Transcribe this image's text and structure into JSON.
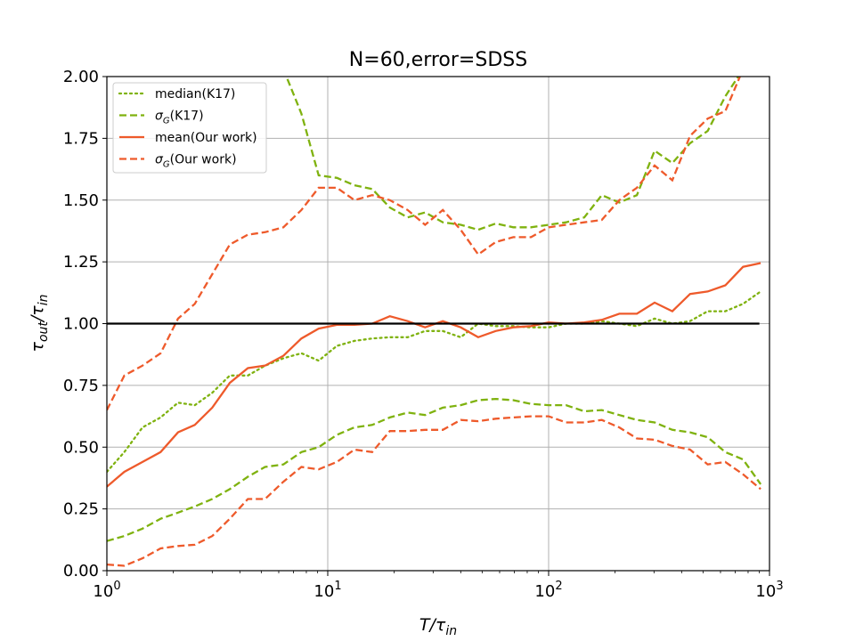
{
  "chart_data": {
    "type": "line",
    "title": "N=60,error=SDSS",
    "xlabel": "T/τin",
    "ylabel": "τout/τin",
    "xscale": "log",
    "xlim": [
      1,
      1000
    ],
    "ylim": [
      0,
      2
    ],
    "grid": true,
    "legend_position": "top-left",
    "x_ticks": [
      {
        "value": 1,
        "base": "10",
        "exp": "0"
      },
      {
        "value": 10,
        "base": "10",
        "exp": "1"
      },
      {
        "value": 100,
        "base": "10",
        "exp": "2"
      },
      {
        "value": 1000,
        "base": "10",
        "exp": "3"
      }
    ],
    "y_ticks": [
      "0.00",
      "0.25",
      "0.50",
      "0.75",
      "1.00",
      "1.25",
      "1.50",
      "1.75",
      "2.00"
    ],
    "reference_line": {
      "y": 1.0,
      "color": "#000000"
    },
    "x": [
      1.0,
      1.2,
      1.45,
      1.75,
      2.1,
      2.5,
      3.0,
      3.6,
      4.35,
      5.2,
      6.3,
      7.6,
      9.1,
      11.0,
      13.2,
      15.9,
      19.1,
      23.0,
      27.6,
      33.2,
      40.0,
      48.0,
      57.6,
      69.2,
      83.2,
      100,
      120,
      145,
      174,
      209,
      251,
      302,
      363,
      437,
      525,
      631,
      759,
      912
    ],
    "series": [
      {
        "label": "median(K17)",
        "color": "#7fb20f",
        "style": "dotted",
        "values": [
          0.4,
          0.48,
          0.58,
          0.62,
          0.68,
          0.67,
          0.72,
          0.79,
          0.79,
          0.83,
          0.86,
          0.88,
          0.85,
          0.91,
          0.93,
          0.94,
          0.945,
          0.945,
          0.97,
          0.97,
          0.945,
          1.0,
          0.99,
          0.99,
          0.985,
          0.985,
          1.0,
          1.0,
          1.01,
          1.0,
          0.99,
          1.02,
          1.0,
          1.01,
          1.05,
          1.05,
          1.08,
          1.13
        ]
      },
      {
        "label_main": "σ",
        "label_sub": "G",
        "label_rest": "(K17)",
        "color": "#7fb20f",
        "style": "dashed",
        "values": [
          0.12,
          0.14,
          0.17,
          0.21,
          0.235,
          0.26,
          0.29,
          0.33,
          0.38,
          0.42,
          0.43,
          0.48,
          0.5,
          0.55,
          0.58,
          0.59,
          0.62,
          0.64,
          0.63,
          0.66,
          0.67,
          0.69,
          0.695,
          0.69,
          0.675,
          0.67,
          0.67,
          0.645,
          0.65,
          0.63,
          0.61,
          0.6,
          0.57,
          0.56,
          0.54,
          0.48,
          0.45,
          0.35
        ]
      },
      {
        "label_main": "σ",
        "label_sub": "G",
        "label_rest": "(K17)",
        "hide_legend": true,
        "color": "#7fb20f",
        "style": "dashed",
        "values": [
          null,
          null,
          null,
          null,
          null,
          null,
          null,
          null,
          null,
          null,
          2.03,
          1.85,
          1.6,
          1.59,
          1.56,
          1.545,
          1.47,
          1.43,
          1.45,
          1.41,
          1.4,
          1.38,
          1.405,
          1.39,
          1.39,
          1.4,
          1.41,
          1.43,
          1.52,
          1.49,
          1.52,
          1.7,
          1.65,
          1.73,
          1.78,
          1.92,
          2.03,
          null
        ]
      },
      {
        "label": "mean(Our work)",
        "color": "#ee5a2b",
        "style": "solid",
        "values": [
          0.34,
          0.4,
          0.44,
          0.48,
          0.56,
          0.59,
          0.66,
          0.76,
          0.82,
          0.83,
          0.87,
          0.94,
          0.98,
          0.995,
          0.995,
          1.0,
          1.03,
          1.01,
          0.985,
          1.01,
          0.985,
          0.945,
          0.97,
          0.985,
          0.99,
          1.005,
          1.0,
          1.005,
          1.015,
          1.04,
          1.04,
          1.085,
          1.05,
          1.12,
          1.13,
          1.155,
          1.23,
          1.245
        ]
      },
      {
        "label_main": "σ",
        "label_sub": "G",
        "label_rest": "(Our work)",
        "color": "#ee5a2b",
        "style": "dashed",
        "values": [
          0.65,
          0.79,
          0.83,
          0.88,
          1.02,
          1.08,
          1.2,
          1.32,
          1.36,
          1.37,
          1.39,
          1.46,
          1.55,
          1.55,
          1.5,
          1.52,
          1.5,
          1.46,
          1.4,
          1.46,
          1.38,
          1.28,
          1.33,
          1.35,
          1.35,
          1.39,
          1.4,
          1.41,
          1.42,
          1.5,
          1.55,
          1.64,
          1.58,
          1.76,
          1.83,
          1.86,
          2.03,
          null
        ]
      },
      {
        "label_main": "σ",
        "label_sub": "G",
        "label_rest": "(Our work)",
        "hide_legend": true,
        "color": "#ee5a2b",
        "style": "dashed",
        "values": [
          0.025,
          0.02,
          0.05,
          0.09,
          0.1,
          0.105,
          0.14,
          0.21,
          0.29,
          0.29,
          0.36,
          0.42,
          0.41,
          0.44,
          0.49,
          0.48,
          0.565,
          0.565,
          0.57,
          0.57,
          0.61,
          0.605,
          0.615,
          0.62,
          0.625,
          0.625,
          0.6,
          0.6,
          0.61,
          0.58,
          0.535,
          0.53,
          0.505,
          0.49,
          0.43,
          0.44,
          0.39,
          0.33
        ]
      }
    ]
  }
}
